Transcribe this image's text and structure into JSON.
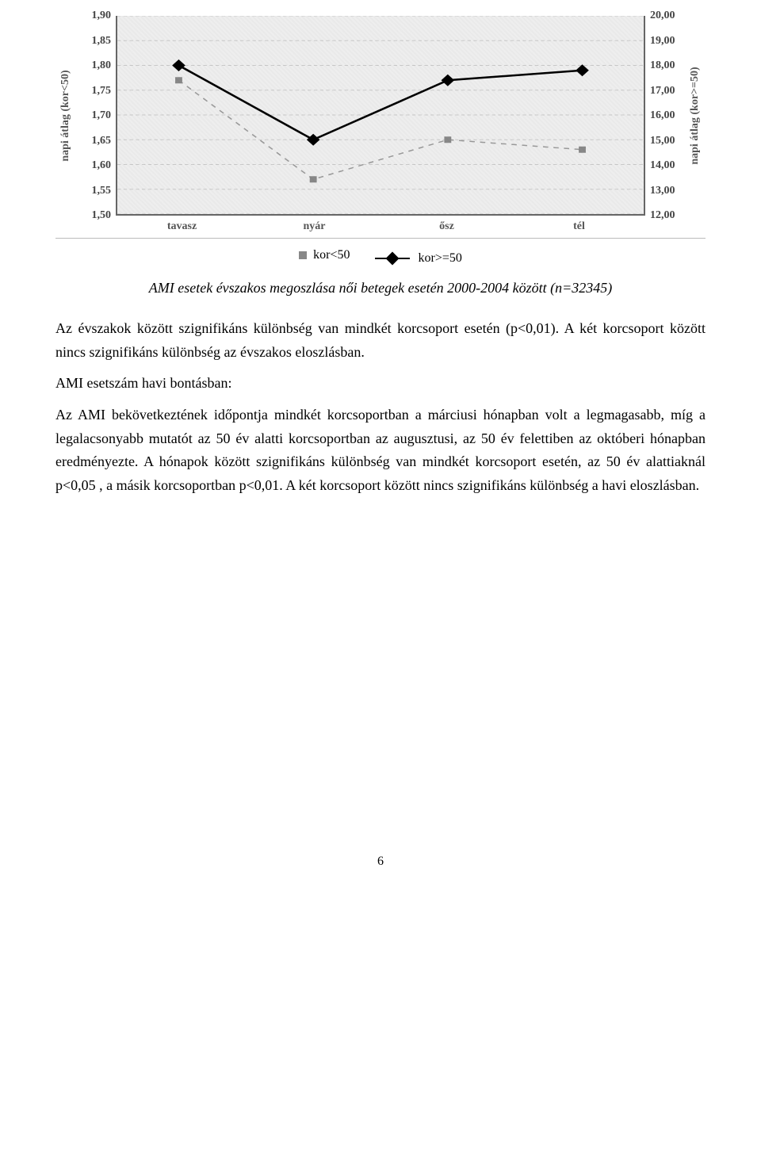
{
  "chart": {
    "type": "line-dual-axis",
    "background_color": "#eeeeee",
    "grid_color": "#c9c9c9",
    "axis_color": "#666666",
    "y_left": {
      "label": "napi átlag (kor<50)",
      "min": 1.5,
      "max": 1.9,
      "ticks": [
        "1,90",
        "1,85",
        "1,80",
        "1,75",
        "1,70",
        "1,65",
        "1,60",
        "1,55",
        "1,50"
      ],
      "tick_values": [
        1.9,
        1.85,
        1.8,
        1.75,
        1.7,
        1.65,
        1.6,
        1.55,
        1.5
      ],
      "label_color": "#555555",
      "fontsize": 14
    },
    "y_right": {
      "label": "napi átlag (kor>=50)",
      "min": 12.0,
      "max": 20.0,
      "ticks": [
        "20,00",
        "19,00",
        "18,00",
        "17,00",
        "16,00",
        "15,00",
        "14,00",
        "13,00",
        "12,00"
      ],
      "tick_values": [
        20,
        19,
        18,
        17,
        16,
        15,
        14,
        13,
        12
      ],
      "label_color": "#555555",
      "fontsize": 14
    },
    "x": {
      "categories": [
        "tavasz",
        "nyár",
        "ősz",
        "tél"
      ],
      "label_color": "#555555",
      "fontsize": 14
    },
    "series": [
      {
        "name": "kor<50",
        "axis": "left",
        "marker": "square",
        "marker_size": 8,
        "line_style": "dashed",
        "line_color": "#9a9a9a",
        "marker_color": "#888888",
        "values": [
          1.77,
          1.57,
          1.65,
          1.63
        ]
      },
      {
        "name": "kor>=50",
        "axis": "right",
        "marker": "diamond",
        "marker_size": 12,
        "line_style": "solid",
        "line_color": "#000000",
        "marker_color": "#000000",
        "values": [
          18.0,
          15.0,
          17.4,
          17.8
        ]
      }
    ],
    "legend": {
      "items": [
        {
          "label": "kor<50",
          "key": "sq"
        },
        {
          "label": "kor>=50",
          "key": "diamond"
        }
      ]
    }
  },
  "caption": "AMI esetek évszakos megoszlása női betegek esetén 2000-2004 között (n=32345)",
  "paragraphs": {
    "p1": "Az évszakok között szignifikáns különbség van mindkét korcsoport esetén (p<0,01). A két korcsoport között nincs szignifikáns különbség az évszakos eloszlásban.",
    "p2": "AMI esetszám havi bontásban:",
    "p3": "Az AMI bekövetkeztének időpontja mindkét korcsoportban a márciusi hónapban volt a legmagasabb, míg a legalacsonyabb mutatót az 50 év alatti korcsoportban az augusztusi, az 50 év felettiben az októberi hónapban  eredményezte. A hónapok között szignifikáns különbség van mindkét korcsoport esetén, az 50 év alattiaknál p<0,05 , a másik korcsoportban p<0,01. A két korcsoport között nincs szignifikáns különbség a havi eloszlásban."
  },
  "page_number": "6"
}
